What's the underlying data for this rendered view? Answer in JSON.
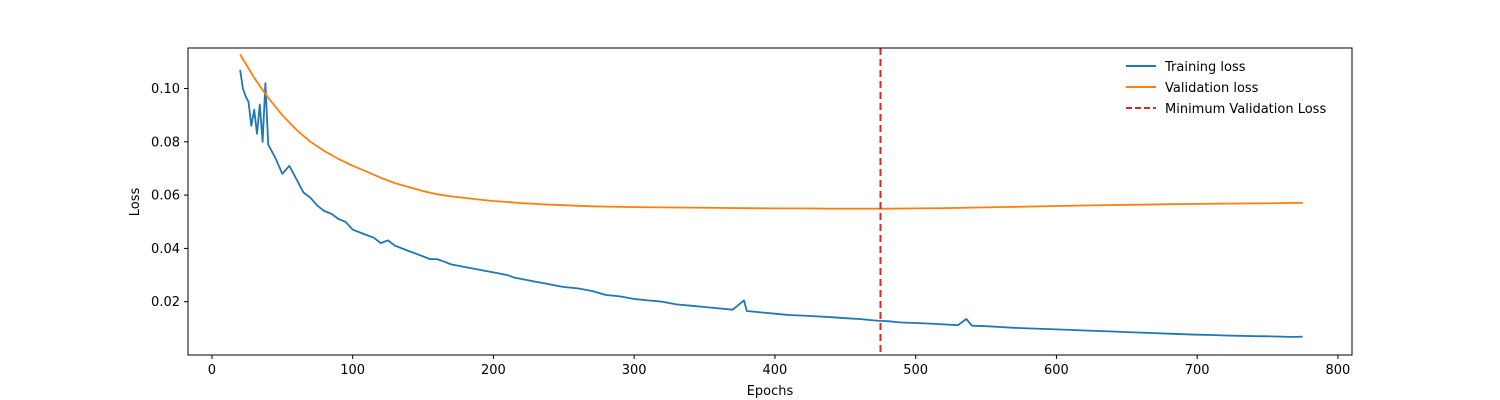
{
  "chart_data": {
    "type": "line",
    "title": "",
    "xlabel": "Epochs",
    "ylabel": "Loss",
    "xlim": [
      -17,
      810
    ],
    "ylim": [
      0.0,
      0.1152
    ],
    "xticks": [
      0,
      100,
      200,
      300,
      400,
      500,
      600,
      700,
      800
    ],
    "yticks": [
      0.02,
      0.04,
      0.06,
      0.08,
      0.1
    ],
    "xtick_labels": [
      "0",
      "100",
      "200",
      "300",
      "400",
      "500",
      "600",
      "700",
      "800"
    ],
    "ytick_labels": [
      "0.02",
      "0.04",
      "0.06",
      "0.08",
      "0.10"
    ],
    "grid": false,
    "legend_position": "top-right",
    "series": [
      {
        "name": "Training loss",
        "color": "#1f77b4",
        "style": "solid",
        "x": [
          20,
          22,
          24,
          26,
          28,
          30,
          32,
          34,
          36,
          38,
          40,
          45,
          50,
          55,
          60,
          65,
          70,
          75,
          80,
          85,
          90,
          95,
          100,
          105,
          110,
          115,
          120,
          125,
          130,
          135,
          140,
          145,
          150,
          155,
          160,
          165,
          170,
          175,
          180,
          185,
          190,
          195,
          200,
          205,
          210,
          215,
          220,
          225,
          230,
          235,
          240,
          245,
          250,
          260,
          270,
          280,
          290,
          300,
          310,
          320,
          330,
          340,
          350,
          360,
          370,
          378,
          380,
          390,
          400,
          410,
          420,
          430,
          440,
          450,
          460,
          470,
          475,
          480,
          490,
          500,
          510,
          520,
          530,
          536,
          540,
          550,
          560,
          570,
          580,
          590,
          600,
          610,
          620,
          630,
          640,
          650,
          660,
          670,
          680,
          690,
          700,
          710,
          720,
          730,
          740,
          750,
          760,
          765,
          770,
          775
        ],
        "y": [
          0.107,
          0.1,
          0.097,
          0.095,
          0.086,
          0.092,
          0.083,
          0.094,
          0.08,
          0.102,
          0.079,
          0.074,
          0.068,
          0.071,
          0.066,
          0.061,
          0.059,
          0.056,
          0.054,
          0.053,
          0.051,
          0.05,
          0.047,
          0.046,
          0.045,
          0.044,
          0.042,
          0.043,
          0.041,
          0.04,
          0.039,
          0.038,
          0.037,
          0.036,
          0.036,
          0.035,
          0.034,
          0.0335,
          0.033,
          0.0325,
          0.032,
          0.0315,
          0.031,
          0.0305,
          0.03,
          0.029,
          0.0285,
          0.028,
          0.0275,
          0.027,
          0.0265,
          0.026,
          0.0255,
          0.025,
          0.024,
          0.0225,
          0.022,
          0.021,
          0.0205,
          0.02,
          0.019,
          0.0185,
          0.018,
          0.0175,
          0.017,
          0.0205,
          0.0165,
          0.016,
          0.0155,
          0.015,
          0.0148,
          0.0145,
          0.0142,
          0.0138,
          0.0135,
          0.013,
          0.0128,
          0.0127,
          0.0122,
          0.012,
          0.0118,
          0.0115,
          0.0112,
          0.0135,
          0.011,
          0.0108,
          0.0105,
          0.0102,
          0.01,
          0.0098,
          0.0096,
          0.0094,
          0.0092,
          0.009,
          0.0088,
          0.0086,
          0.0084,
          0.0082,
          0.008,
          0.0078,
          0.0076,
          0.0075,
          0.0073,
          0.0072,
          0.0071,
          0.007,
          0.0069,
          0.0068,
          0.0068,
          0.0069
        ]
      },
      {
        "name": "Validation loss",
        "color": "#ff7f0e",
        "style": "solid",
        "x": [
          20,
          30,
          40,
          50,
          60,
          70,
          80,
          90,
          100,
          110,
          120,
          130,
          140,
          150,
          160,
          170,
          180,
          190,
          200,
          210,
          220,
          230,
          240,
          250,
          260,
          270,
          280,
          290,
          300,
          320,
          340,
          360,
          380,
          400,
          420,
          440,
          460,
          475,
          480,
          500,
          520,
          540,
          560,
          580,
          600,
          620,
          640,
          660,
          680,
          700,
          720,
          740,
          760,
          775
        ],
        "y": [
          0.1128,
          0.104,
          0.0965,
          0.09,
          0.0845,
          0.08,
          0.0765,
          0.0735,
          0.071,
          0.0688,
          0.0665,
          0.0645,
          0.063,
          0.0615,
          0.0603,
          0.0595,
          0.0589,
          0.0583,
          0.0578,
          0.0574,
          0.057,
          0.0567,
          0.0564,
          0.0562,
          0.056,
          0.0558,
          0.0557,
          0.0556,
          0.0555,
          0.0554,
          0.0553,
          0.0552,
          0.0551,
          0.055,
          0.055,
          0.0549,
          0.0549,
          0.0549,
          0.0549,
          0.055,
          0.0551,
          0.0553,
          0.0555,
          0.0557,
          0.0559,
          0.0561,
          0.0563,
          0.0564,
          0.0566,
          0.0567,
          0.0568,
          0.0569,
          0.057,
          0.0571
        ]
      }
    ],
    "vlines": [
      {
        "name": "Minimum Validation Loss",
        "x": 475,
        "color": "#d62728",
        "style": "dashed"
      }
    ]
  }
}
